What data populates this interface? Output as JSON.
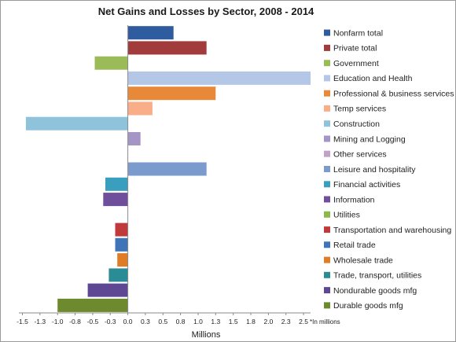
{
  "chart_data": {
    "type": "bar",
    "orientation": "horizontal",
    "title": "Net Gains and Losses by Sector, 2008 - 2014",
    "xlabel": "Millions",
    "ylabel": "",
    "unit_note": "*In millions",
    "xlim": [
      -1.55,
      2.6
    ],
    "x_ticks": [
      -1.5,
      -1.25,
      -1.0,
      -0.75,
      -0.5,
      -0.25,
      0,
      0.25,
      0.5,
      0.75,
      1.0,
      1.25,
      1.5,
      1.75,
      2.0,
      2.25,
      2.5
    ],
    "x_tick_labels": [
      "-1.5",
      "-1.3",
      "-1.0",
      "-0.8",
      "-0.5",
      "-0.3",
      "0.0",
      "0.3",
      "0.5",
      "0.8",
      "1.0",
      "1.3",
      "1.5",
      "1.8",
      "2.0",
      "2.3",
      "2.5"
    ],
    "grid": false,
    "legend_position": "right",
    "series": [
      {
        "name": "Nonfarm total",
        "value": 0.65,
        "color": "#2E5C9E"
      },
      {
        "name": "Private total",
        "value": 1.12,
        "color": "#A23B3B"
      },
      {
        "name": "Government",
        "value": -0.47,
        "color": "#9BBB59"
      },
      {
        "name": "Education and Health",
        "value": 2.6,
        "color": "#B4C7E7"
      },
      {
        "name": "Professional & business services",
        "value": 1.25,
        "color": "#E8893A"
      },
      {
        "name": "Temp services",
        "value": 0.35,
        "color": "#F9AE88"
      },
      {
        "name": "Construction",
        "value": -1.45,
        "color": "#8FC2DB"
      },
      {
        "name": "Mining and Logging",
        "value": 0.18,
        "color": "#A595C6"
      },
      {
        "name": "Other services",
        "value": 0.0,
        "color": "#C3A2C8"
      },
      {
        "name": "Leisure and hospitality",
        "value": 1.12,
        "color": "#7B9BCF"
      },
      {
        "name": "Financial activities",
        "value": -0.32,
        "color": "#3A9FBF"
      },
      {
        "name": "Information",
        "value": -0.35,
        "color": "#6F4E9B"
      },
      {
        "name": "Utilities",
        "value": 0.0,
        "color": "#8EB84A"
      },
      {
        "name": "Transportation and warehousing",
        "value": -0.18,
        "color": "#C0393B"
      },
      {
        "name": "Retail trade",
        "value": -0.18,
        "color": "#3F74B8"
      },
      {
        "name": "Wholesale trade",
        "value": -0.15,
        "color": "#E07B26"
      },
      {
        "name": "Trade, transport, utilities",
        "value": -0.27,
        "color": "#2B8C96"
      },
      {
        "name": "Nondurable goods mfg",
        "value": -0.57,
        "color": "#5F4893"
      },
      {
        "name": "Durable goods mfg",
        "value": -1.0,
        "color": "#6E8A2E"
      }
    ]
  }
}
